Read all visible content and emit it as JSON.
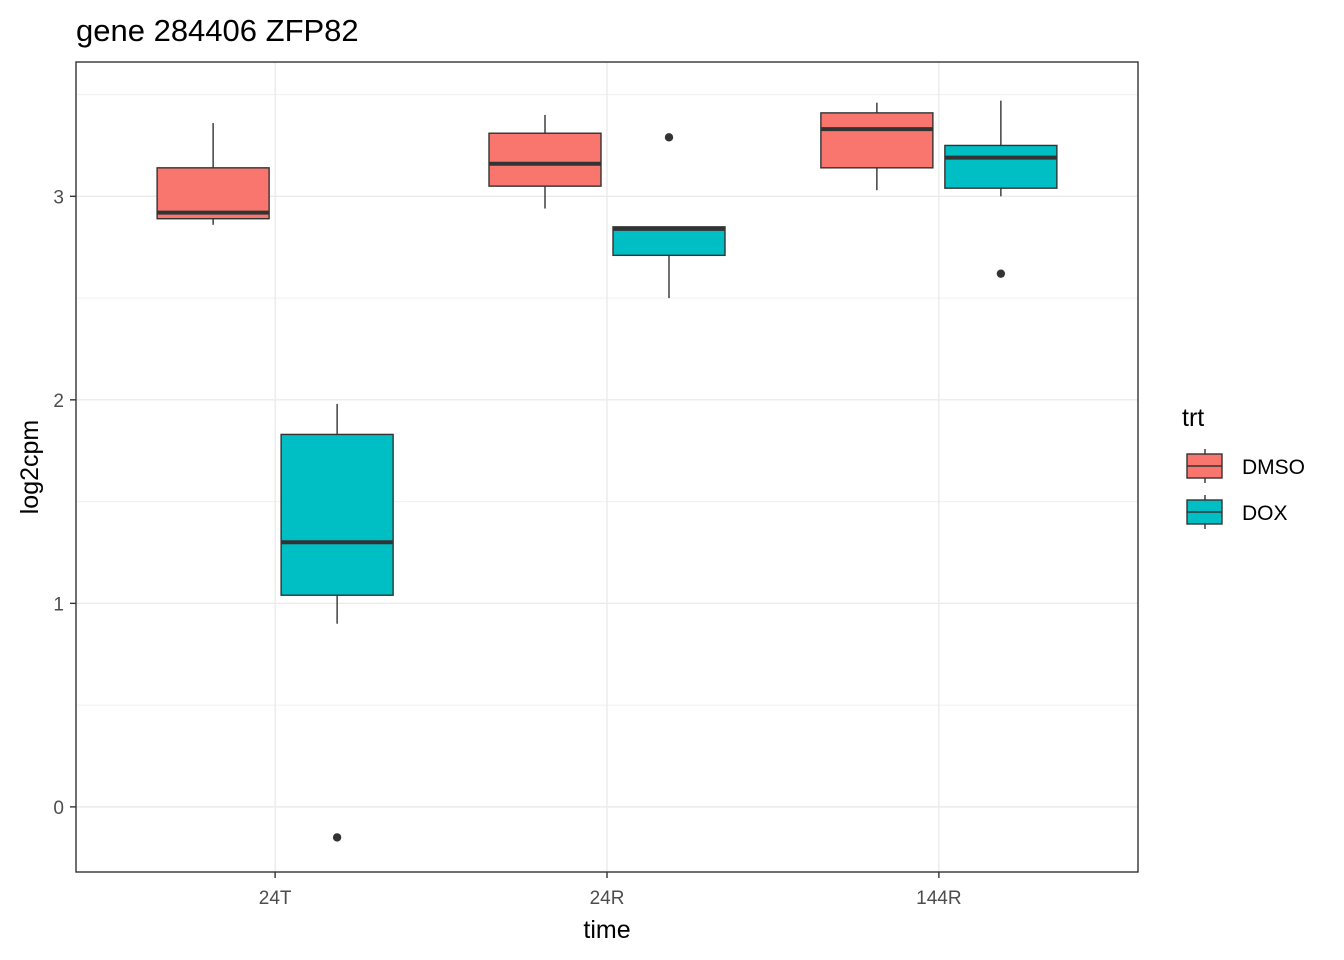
{
  "chart_data": {
    "type": "boxplot",
    "title": "gene 284406 ZFP82",
    "xlabel": "time",
    "ylabel": "log2cpm",
    "categories": [
      "24T",
      "24R",
      "144R"
    ],
    "ylim": [
      -0.32,
      3.66
    ],
    "yticks": [
      0,
      1,
      2,
      3
    ],
    "grid": true,
    "legend": {
      "title": "trt",
      "position": "right"
    },
    "series": [
      {
        "name": "DMSO",
        "color": "#F8766D",
        "boxes": [
          {
            "category": "24T",
            "whisker_low": 2.86,
            "q1": 2.89,
            "median": 2.92,
            "q3": 3.14,
            "whisker_high": 3.36,
            "outliers": []
          },
          {
            "category": "24R",
            "whisker_low": 2.94,
            "q1": 3.05,
            "median": 3.16,
            "q3": 3.31,
            "whisker_high": 3.4,
            "outliers": []
          },
          {
            "category": "144R",
            "whisker_low": 3.03,
            "q1": 3.14,
            "median": 3.33,
            "q3": 3.41,
            "whisker_high": 3.46,
            "outliers": []
          }
        ]
      },
      {
        "name": "DOX",
        "color": "#00BFC4",
        "boxes": [
          {
            "category": "24T",
            "whisker_low": 0.9,
            "q1": 1.04,
            "median": 1.3,
            "q3": 1.83,
            "whisker_high": 1.98,
            "outliers": [
              -0.15
            ]
          },
          {
            "category": "24R",
            "whisker_low": 2.5,
            "q1": 2.71,
            "median": 2.84,
            "q3": 2.85,
            "whisker_high": 2.85,
            "outliers": [
              3.29
            ]
          },
          {
            "category": "144R",
            "whisker_low": 3.0,
            "q1": 3.04,
            "median": 3.19,
            "q3": 3.25,
            "whisker_high": 3.47,
            "outliers": [
              2.62
            ]
          }
        ]
      }
    ]
  }
}
